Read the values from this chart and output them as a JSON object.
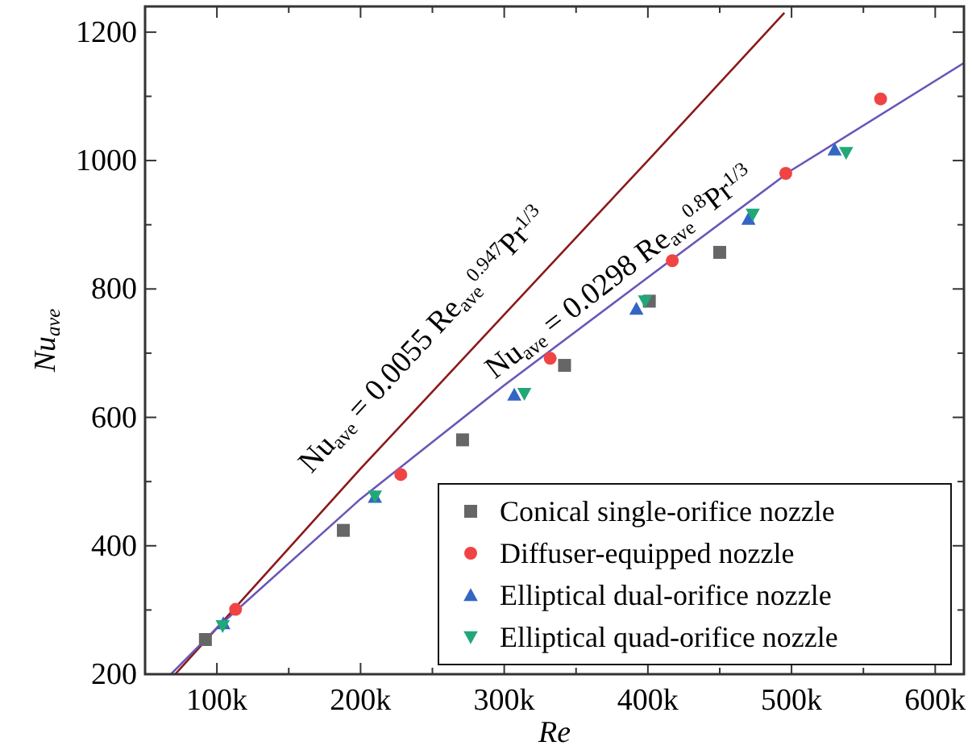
{
  "chart_data": {
    "type": "scatter",
    "xlabel": "Re",
    "ylabel": "Nu$_{ave}$",
    "xlim": [
      50000,
      620000
    ],
    "ylim": [
      200,
      1240
    ],
    "xticks": [
      {
        "value": 100000,
        "label": "100k"
      },
      {
        "value": 150000,
        "label": null
      },
      {
        "value": 200000,
        "label": "200k"
      },
      {
        "value": 250000,
        "label": null
      },
      {
        "value": 300000,
        "label": "300k"
      },
      {
        "value": 350000,
        "label": null
      },
      {
        "value": 400000,
        "label": "400k"
      },
      {
        "value": 450000,
        "label": null
      },
      {
        "value": 500000,
        "label": "500k"
      },
      {
        "value": 550000,
        "label": null
      },
      {
        "value": 600000,
        "label": "600k"
      }
    ],
    "yticks": [
      200,
      {
        "value": 300,
        "label": null
      },
      400,
      {
        "value": 500,
        "label": null
      },
      600,
      {
        "value": 700,
        "label": null
      },
      800,
      {
        "value": 900,
        "label": null
      },
      1000,
      {
        "value": 1100,
        "label": null
      },
      1200
    ],
    "grid": false,
    "legend": "bottom right",
    "series": [
      {
        "name": "Conical single-orifice nozzle",
        "color": "#666666",
        "marker": "square",
        "x": [
          92000,
          188000,
          271000,
          342000,
          401000,
          450000
        ],
        "values": [
          254,
          424,
          565,
          681,
          781,
          857
        ]
      },
      {
        "name": "Diffuser-equipped nozzle",
        "color": "#f04444",
        "marker": "circle",
        "x": [
          113000,
          228000,
          332000,
          417000,
          496000,
          562000
        ],
        "values": [
          301,
          511,
          692,
          844,
          980,
          1096
        ]
      },
      {
        "name": "Elliptical dual-orifice nozzle",
        "color": "#3366c4",
        "marker": "triangle",
        "x": [
          104500,
          210000,
          307000,
          392000,
          470000,
          530000
        ],
        "values": [
          279,
          476,
          635,
          769,
          909,
          1017
        ]
      },
      {
        "name": "Elliptical quad-orifice nozzle",
        "color": "#22a878",
        "marker": "triangle-down",
        "x": [
          104000,
          210000,
          314000,
          398000,
          473000,
          538000
        ],
        "values": [
          275,
          477,
          637,
          781,
          916,
          1012
        ]
      },
      {
        "type": "line",
        "color": "#8b1a1a",
        "marker": "none",
        "x": [
          71000,
          200000,
          300000,
          400000,
          462000,
          495000
        ],
        "values": [
          200,
          520,
          760,
          1000,
          1150,
          1230
        ]
      },
      {
        "type": "line",
        "color": "#6a55b8",
        "marker": "none",
        "x": [
          68000,
          100000,
          200000,
          300000,
          400000,
          500000,
          620000
        ],
        "values": [
          200,
          272,
          473,
          650,
          818,
          985,
          1152
        ]
      }
    ],
    "annotations": [
      "Nu$_{ave}$ = 0.0055 Re$_{ave}$$^{0.947}$Pr$^{1/3}$",
      "Nu$_{ave}$ = 0.0298 Re$_{ave}$$^{0.8}$Pr$^{1/3}$"
    ]
  }
}
